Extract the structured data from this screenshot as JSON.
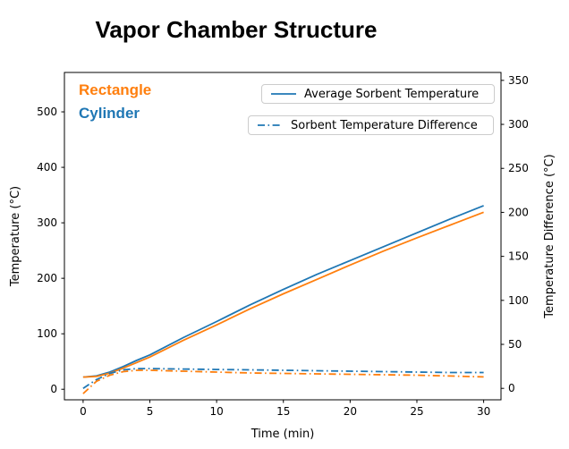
{
  "title": "Vapor Chamber Structure",
  "colors": {
    "blue": "#1f77b4",
    "orange": "#ff7f0e",
    "axis": "#000000",
    "legend_border": "#cccccc",
    "background": "#ffffff"
  },
  "annotations": {
    "rectangle": {
      "label": "Rectangle",
      "color": "#ff7f0e"
    },
    "cylinder": {
      "label": "Cylinder",
      "color": "#1f77b4"
    }
  },
  "legend": {
    "avg": {
      "label": "Average Sorbent Temperature",
      "style": "solid",
      "color": "#1f77b4"
    },
    "diff": {
      "label": "Sorbent Temperature Difference",
      "style": "dashdot",
      "color": "#1f77b4"
    }
  },
  "chart_data": {
    "type": "line",
    "title": "Vapor Chamber Structure",
    "xlabel": "Time (min)",
    "ylabel_left": "Temperature (°C)",
    "ylabel_right": "Temperature Difference (°C)",
    "grid": false,
    "legend_position": "upper center, two stacked boxes",
    "xlim": [
      -1.4,
      31.3
    ],
    "ylim_left": [
      -19,
      571
    ],
    "ylim_right": [
      -13,
      359
    ],
    "x_ticks": [
      0,
      5,
      10,
      15,
      20,
      25,
      30
    ],
    "y_ticks_left": [
      0,
      100,
      200,
      300,
      400,
      500
    ],
    "y_ticks_right": [
      0,
      50,
      100,
      150,
      200,
      250,
      300,
      350
    ],
    "x": [
      0,
      1,
      2,
      3,
      4,
      5,
      7.5,
      10,
      12.5,
      15,
      17.5,
      20,
      22.5,
      25,
      27.5,
      30
    ],
    "series": [
      {
        "name": "Cylinder - Average Sorbent Temperature",
        "axis": "left",
        "style": "solid",
        "color": "#1f77b4",
        "values": [
          22,
          24,
          31,
          41,
          52,
          62,
          93,
          122,
          152,
          180,
          207,
          232,
          257,
          282,
          307,
          331
        ]
      },
      {
        "name": "Rectangle - Average Sorbent Temperature",
        "axis": "left",
        "style": "solid",
        "color": "#ff7f0e",
        "values": [
          22,
          23,
          29,
          38,
          48,
          58,
          88,
          116,
          145,
          172,
          198,
          224,
          249,
          273,
          296,
          319
        ]
      },
      {
        "name": "Cylinder - Sorbent Temperature Difference",
        "axis": "right",
        "style": "dashdot",
        "color": "#1f77b4",
        "values": [
          0,
          10,
          17,
          21,
          22.5,
          22.5,
          22,
          21.5,
          21,
          20.5,
          20,
          19.5,
          19,
          18.5,
          18,
          18
        ]
      },
      {
        "name": "Rectangle - Sorbent Temperature Difference",
        "axis": "right",
        "style": "dashdot",
        "color": "#ff7f0e",
        "values": [
          -6,
          8,
          15,
          19,
          20.5,
          20.5,
          19.5,
          18.5,
          17.5,
          17,
          16.5,
          16,
          15.5,
          15,
          14,
          13
        ]
      }
    ]
  }
}
